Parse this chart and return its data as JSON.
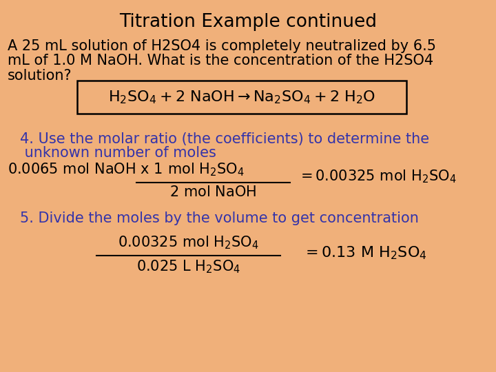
{
  "title": "Titration Example continued",
  "bg_color_top": "#e8997a",
  "bg_color_bottom": "#f0c090",
  "title_fontsize": 19,
  "body_fontsize": 15,
  "eq_fontsize": 16,
  "black": "#000000",
  "blue": "#3333aa",
  "problem_line1": "A 25 mL solution of H2SO4 is completely neutralized by 6.5",
  "problem_line2": "mL of 1.0 M NaOH. What is the concentration of the H2SO4",
  "problem_line3": "solution?",
  "step4_line1": "4. Use the molar ratio (the coefficients) to determine the",
  "step4_line2": " unknown number of moles",
  "step5_header": "5. Divide the moles by the volume to get concentration"
}
